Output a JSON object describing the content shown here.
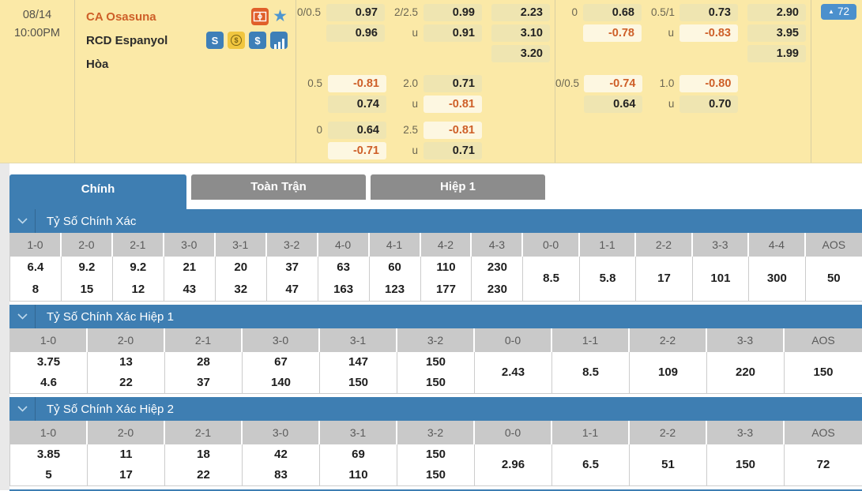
{
  "colors": {
    "accent_blue": "#3E7EB2",
    "badge_blue": "#4B90CD",
    "panel_yellow": "#FBE9A7",
    "negative_orange": "#CE5F28",
    "tab_gray": "#8C8C8C"
  },
  "match": {
    "date": "08/14",
    "time": "10:00PM",
    "home_team": "CA Osasuna",
    "away_team": "RCD Espanyol",
    "draw_label": "Hòa",
    "more_markets_arrow": "▲",
    "more_markets_count": "72",
    "icons": [
      "pitch-icon",
      "star-icon",
      "betslip-icon",
      "coin-icon",
      "dollar-icon",
      "stats-icon"
    ]
  },
  "labels": {
    "under": "u"
  },
  "odds": {
    "full": {
      "b1": {
        "hdp_line": "0/0.5",
        "hdp_home": "0.97",
        "hdp_away": "0.96",
        "ou_line": "2/2.5",
        "ou_over": "0.99",
        "ou_under": "0.91",
        "x12_home": "2.23",
        "x12_away": "3.10",
        "x12_draw": "3.20"
      },
      "b2": {
        "hdp_line": "0.5",
        "hdp_home": "-0.81",
        "hdp_away": "0.74",
        "ou_line": "2.0",
        "ou_over": "0.71",
        "ou_under": "-0.81"
      },
      "b3": {
        "hdp_line": "0",
        "hdp_home": "0.64",
        "hdp_away": "-0.71",
        "ou_line": "2.5",
        "ou_over": "-0.81",
        "ou_under": "0.71"
      }
    },
    "half": {
      "b1": {
        "hdp_line": "0",
        "hdp_home": "0.68",
        "hdp_away": "-0.78",
        "ou_line": "0.5/1",
        "ou_over": "0.73",
        "ou_under": "-0.83",
        "x12_home": "2.90",
        "x12_away": "3.95",
        "x12_draw": "1.99"
      },
      "b2": {
        "hdp_line": "0/0.5",
        "hdp_home": "-0.74",
        "hdp_away": "0.64",
        "ou_line": "1.0",
        "ou_over": "-0.80",
        "ou_under": "0.70"
      }
    }
  },
  "tabs": [
    {
      "label": "Chính",
      "active": true
    },
    {
      "label": "Toàn Trận",
      "active": false
    },
    {
      "label": "Hiệp 1",
      "active": false
    }
  ],
  "sections": [
    {
      "title": "Tỷ Số Chính Xác",
      "columns": [
        {
          "label": "1-0",
          "values": [
            "6.4",
            "8"
          ]
        },
        {
          "label": "2-0",
          "values": [
            "9.2",
            "15"
          ]
        },
        {
          "label": "2-1",
          "values": [
            "9.2",
            "12"
          ]
        },
        {
          "label": "3-0",
          "values": [
            "21",
            "43"
          ]
        },
        {
          "label": "3-1",
          "values": [
            "20",
            "32"
          ]
        },
        {
          "label": "3-2",
          "values": [
            "37",
            "47"
          ]
        },
        {
          "label": "4-0",
          "values": [
            "63",
            "163"
          ]
        },
        {
          "label": "4-1",
          "values": [
            "60",
            "123"
          ]
        },
        {
          "label": "4-2",
          "values": [
            "110",
            "177"
          ]
        },
        {
          "label": "4-3",
          "values": [
            "230",
            "230"
          ]
        },
        {
          "label": "0-0",
          "values": [
            "8.5"
          ]
        },
        {
          "label": "1-1",
          "values": [
            "5.8"
          ]
        },
        {
          "label": "2-2",
          "values": [
            "17"
          ]
        },
        {
          "label": "3-3",
          "values": [
            "101"
          ]
        },
        {
          "label": "4-4",
          "values": [
            "300"
          ]
        },
        {
          "label": "AOS",
          "values": [
            "50"
          ]
        }
      ]
    },
    {
      "title": "Tỷ Số Chính Xác Hiệp 1",
      "columns": [
        {
          "label": "1-0",
          "values": [
            "3.75",
            "4.6"
          ]
        },
        {
          "label": "2-0",
          "values": [
            "13",
            "22"
          ]
        },
        {
          "label": "2-1",
          "values": [
            "28",
            "37"
          ]
        },
        {
          "label": "3-0",
          "values": [
            "67",
            "140"
          ]
        },
        {
          "label": "3-1",
          "values": [
            "147",
            "150"
          ]
        },
        {
          "label": "3-2",
          "values": [
            "150",
            "150"
          ]
        },
        {
          "label": "0-0",
          "values": [
            "2.43"
          ]
        },
        {
          "label": "1-1",
          "values": [
            "8.5"
          ]
        },
        {
          "label": "2-2",
          "values": [
            "109"
          ]
        },
        {
          "label": "3-3",
          "values": [
            "220"
          ]
        },
        {
          "label": "AOS",
          "values": [
            "150"
          ]
        }
      ]
    },
    {
      "title": "Tỷ Số Chính Xác Hiệp 2",
      "columns": [
        {
          "label": "1-0",
          "values": [
            "3.85",
            "5"
          ]
        },
        {
          "label": "2-0",
          "values": [
            "11",
            "17"
          ]
        },
        {
          "label": "2-1",
          "values": [
            "18",
            "22"
          ]
        },
        {
          "label": "3-0",
          "values": [
            "42",
            "83"
          ]
        },
        {
          "label": "3-1",
          "values": [
            "69",
            "110"
          ]
        },
        {
          "label": "3-2",
          "values": [
            "150",
            "150"
          ]
        },
        {
          "label": "0-0",
          "values": [
            "2.96"
          ]
        },
        {
          "label": "1-1",
          "values": [
            "6.5"
          ]
        },
        {
          "label": "2-2",
          "values": [
            "51"
          ]
        },
        {
          "label": "3-3",
          "values": [
            "150"
          ]
        },
        {
          "label": "AOS",
          "values": [
            "72"
          ]
        }
      ]
    }
  ]
}
